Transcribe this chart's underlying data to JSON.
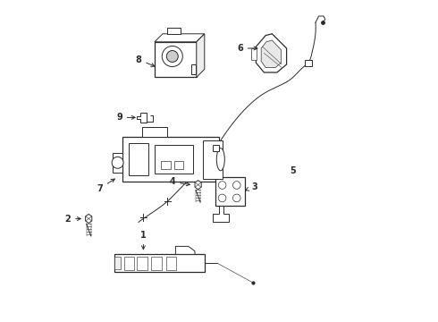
{
  "bg_color": "#ffffff",
  "line_color": "#2a2a2a",
  "fig_width": 4.9,
  "fig_height": 3.6,
  "dpi": 100,
  "parts": {
    "cable": {
      "x": [
        0.785,
        0.782,
        0.775,
        0.76,
        0.73,
        0.69,
        0.64,
        0.58,
        0.52,
        0.46,
        0.4,
        0.35
      ],
      "y": [
        0.93,
        0.88,
        0.82,
        0.77,
        0.73,
        0.695,
        0.67,
        0.62,
        0.565,
        0.505,
        0.445,
        0.39
      ]
    },
    "cable2": {
      "x": [
        0.35,
        0.31,
        0.27,
        0.24
      ],
      "y": [
        0.39,
        0.35,
        0.315,
        0.29
      ]
    }
  }
}
